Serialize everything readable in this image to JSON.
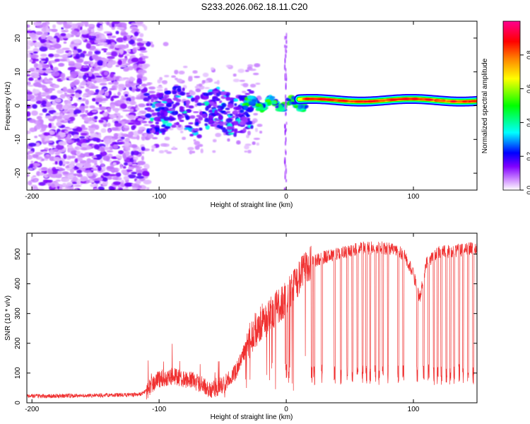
{
  "title": "S233.2026.062.18.11.C20",
  "colors": {
    "snr_line": "#f03030",
    "axis": "#000000"
  },
  "chart_data": [
    {
      "type": "heatmap",
      "name": "spectrogram",
      "xlabel": "Height of straight line (km)",
      "ylabel": "Frequency (Hz)",
      "xlim": [
        -204,
        150
      ],
      "ylim": [
        -25,
        25
      ],
      "xticks": [
        -200,
        -100,
        0,
        100
      ],
      "yticks": [
        -20,
        -10,
        0,
        10,
        20
      ],
      "xtick_labels": [
        "-200",
        "-100",
        "0",
        "100"
      ],
      "ytick_labels": [
        "-20",
        "-10",
        "0",
        "10",
        "20"
      ],
      "colorbar": {
        "label": "Normalized spectral amplitude",
        "range": [
          0,
          1
        ],
        "ticks": [
          0.0,
          0.2,
          0.4,
          0.6,
          0.8
        ],
        "tick_labels": [
          "0.0",
          "0.2",
          "0.4",
          "0.6",
          "0.8"
        ],
        "stops": [
          "#ffffff",
          "#a000ff",
          "#0000ff",
          "#00ffff",
          "#00ff00",
          "#ffff00",
          "#ff8000",
          "#ff0000",
          "#ff00a0"
        ]
      },
      "regions": [
        {
          "desc": "scattered noise",
          "x_range": [
            -204,
            -110
          ],
          "f_range": [
            -25,
            25
          ],
          "amplitude": 0.05
        },
        {
          "desc": "emerging signal",
          "x_range": [
            -110,
            -30
          ],
          "f_range": [
            -10,
            8
          ],
          "amplitude": 0.25
        },
        {
          "desc": "converging signal",
          "x_range": [
            -30,
            15
          ],
          "f_range": [
            -2,
            3
          ],
          "amplitude": 0.5
        },
        {
          "desc": "steady carrier",
          "x_range": [
            15,
            150
          ],
          "f_range": [
            0.5,
            2.5
          ],
          "amplitude": 0.85
        }
      ]
    },
    {
      "type": "line",
      "name": "snr",
      "xlabel": "Height of straight line (km)",
      "ylabel": "SNR (10 * v/v)",
      "xlim": [
        -204,
        150
      ],
      "ylim": [
        0,
        570
      ],
      "xticks": [
        -200,
        -100,
        0,
        100
      ],
      "yticks": [
        0,
        100,
        200,
        300,
        400,
        500
      ],
      "xtick_labels": [
        "-200",
        "-100",
        "0",
        "100"
      ],
      "ytick_labels": [
        "0",
        "100",
        "200",
        "300",
        "400",
        "500"
      ],
      "envelope": {
        "x": [
          -204,
          -150,
          -115,
          -110,
          -100,
          -90,
          -70,
          -60,
          -50,
          -40,
          -35,
          -30,
          -25,
          -20,
          -10,
          -5,
          0,
          5,
          10,
          15,
          20,
          25,
          30,
          40,
          60,
          80,
          90,
          95,
          100,
          105,
          110,
          120,
          150
        ],
        "y": [
          22,
          25,
          28,
          40,
          80,
          90,
          70,
          40,
          60,
          100,
          150,
          200,
          240,
          270,
          310,
          330,
          350,
          380,
          420,
          450,
          470,
          480,
          490,
          500,
          520,
          520,
          505,
          480,
          430,
          350,
          470,
          505,
          520
        ]
      },
      "dropouts_x": [
        0,
        2,
        20,
        22,
        28,
        38,
        43,
        48,
        52,
        56,
        60,
        63,
        66,
        70,
        73,
        76,
        80,
        88,
        92,
        103,
        108,
        112,
        116,
        119,
        122,
        126,
        129,
        132,
        136,
        139,
        143,
        147
      ]
    }
  ]
}
